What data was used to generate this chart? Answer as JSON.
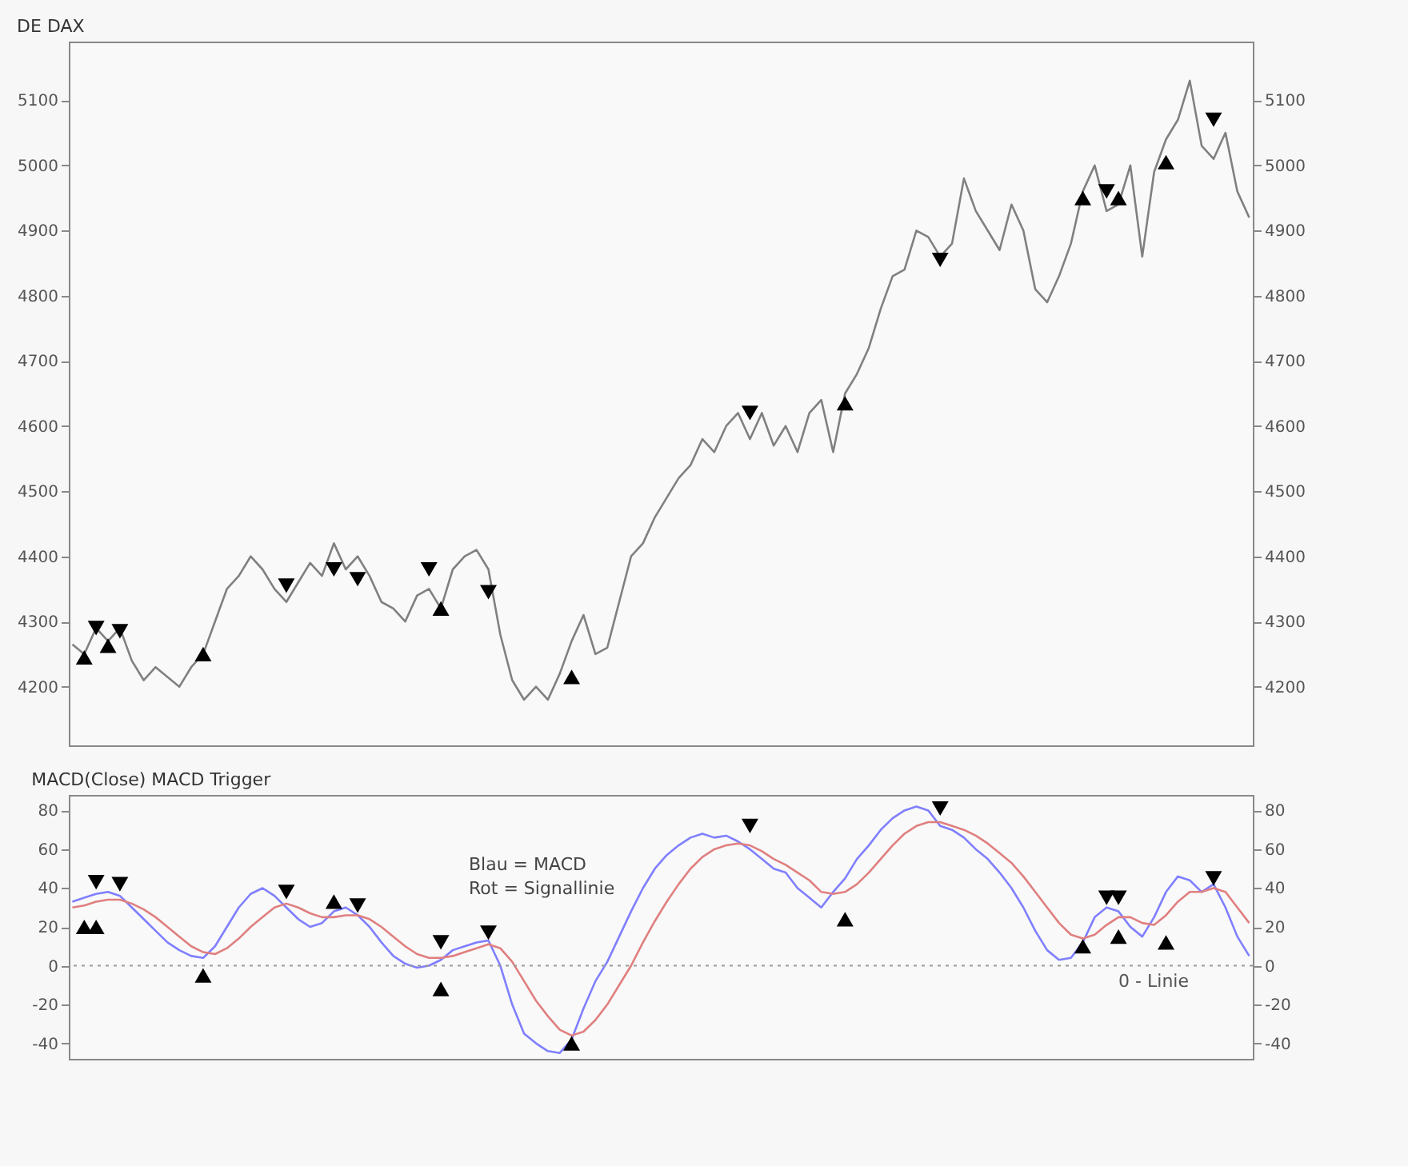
{
  "chart_data": [
    {
      "type": "line",
      "title": "DE DAX",
      "tick_labels": "y",
      "categories": [
        null,
        null,
        null,
        null,
        null,
        null,
        null,
        null,
        null,
        null,
        null,
        null,
        null,
        null,
        null,
        null,
        null,
        null,
        null,
        null,
        null,
        null,
        null,
        null,
        null,
        null,
        null,
        null,
        null,
        null,
        null,
        null,
        null,
        null,
        null,
        null,
        null,
        null,
        null,
        null,
        null,
        null,
        null,
        null,
        null,
        null,
        null,
        null,
        null,
        null,
        null,
        null,
        null,
        null,
        null,
        null,
        null,
        null,
        null,
        null,
        null,
        null,
        null,
        null,
        null,
        null,
        null,
        null,
        null,
        null,
        null,
        null,
        null,
        null,
        null,
        null,
        null,
        null,
        null,
        null,
        null,
        null,
        null,
        null,
        null,
        null,
        null,
        null,
        null,
        null,
        null,
        null,
        null,
        null,
        null,
        null,
        null,
        null,
        null,
        null
      ],
      "ylim": [
        4110,
        5190
      ],
      "yticks": [
        4200,
        4300,
        4400,
        4500,
        4600,
        4700,
        4800,
        4900,
        5000,
        5100
      ],
      "y2lim": [
        4110,
        5190
      ],
      "y2ticks": [
        4200,
        4300,
        4400,
        4500,
        4600,
        4700,
        4800,
        4900,
        5000,
        5100
      ],
      "series": [
        {
          "color": "#808080",
          "values": [
            4265,
            4250,
            4290,
            4270,
            4290,
            4240,
            4210,
            4230,
            4215,
            4200,
            4230,
            4250,
            4300,
            4350,
            4370,
            4400,
            4380,
            4350,
            4330,
            4360,
            4390,
            4370,
            4420,
            4380,
            4400,
            4370,
            4330,
            4320,
            4300,
            4340,
            4350,
            4320,
            4380,
            4400,
            4410,
            4380,
            4280,
            4210,
            4180,
            4200,
            4180,
            4220,
            4270,
            4310,
            4250,
            4260,
            4330,
            4400,
            4420,
            4460,
            4490,
            4520,
            4540,
            4580,
            4560,
            4600,
            4620,
            4580,
            4620,
            4570,
            4600,
            4560,
            4620,
            4640,
            4560,
            4650,
            4680,
            4720,
            4780,
            4830,
            4840,
            4900,
            4890,
            4860,
            4880,
            4980,
            4930,
            4900,
            4870,
            4940,
            4900,
            4810,
            4790,
            4830,
            4880,
            4960,
            5000,
            4930,
            4940,
            5000,
            4860,
            4990,
            5040,
            5070,
            5130,
            5030,
            5010,
            5050,
            4960,
            4920
          ]
        },
        {
          "type": "scatter",
          "marker": "triangle",
          "color": "#000000",
          "values": [
            null,
            4245,
            null,
            4263,
            null,
            null,
            null,
            null,
            null,
            null,
            null,
            4250,
            null,
            null,
            null,
            null,
            null,
            null,
            null,
            null,
            null,
            null,
            null,
            null,
            null,
            null,
            null,
            null,
            null,
            null,
            null,
            4320,
            null,
            null,
            null,
            null,
            null,
            null,
            null,
            null,
            null,
            null,
            4215,
            null,
            null,
            null,
            null,
            null,
            null,
            null,
            null,
            null,
            null,
            null,
            null,
            null,
            null,
            null,
            null,
            null,
            null,
            null,
            null,
            null,
            null,
            4635,
            null,
            null,
            null,
            null,
            null,
            null,
            null,
            null,
            null,
            null,
            null,
            null,
            null,
            null,
            null,
            null,
            null,
            null,
            null,
            4950,
            null,
            null,
            4950,
            null,
            null,
            null,
            5005,
            null,
            null,
            null,
            null,
            null,
            null,
            null
          ]
        },
        {
          "type": "scatter",
          "marker": "triangle-down",
          "color": "#000000",
          "values": [
            null,
            null,
            4290,
            null,
            4285,
            null,
            null,
            null,
            null,
            null,
            null,
            null,
            null,
            null,
            null,
            null,
            null,
            null,
            4355,
            null,
            null,
            null,
            4380,
            null,
            4365,
            null,
            null,
            null,
            null,
            null,
            4380,
            null,
            null,
            null,
            null,
            4345,
            null,
            null,
            null,
            null,
            null,
            null,
            null,
            null,
            null,
            null,
            null,
            null,
            null,
            null,
            null,
            null,
            null,
            null,
            null,
            null,
            null,
            4620,
            null,
            null,
            null,
            null,
            null,
            null,
            null,
            null,
            null,
            null,
            null,
            null,
            null,
            null,
            null,
            4855,
            null,
            null,
            null,
            null,
            null,
            null,
            null,
            null,
            null,
            null,
            null,
            null,
            null,
            4960,
            null,
            null,
            null,
            null,
            null,
            null,
            null,
            null,
            5070,
            null,
            null,
            null
          ]
        }
      ]
    },
    {
      "type": "line",
      "title": "MACD(Close) MACD Trigger",
      "tick_labels": "y",
      "categories": [
        null,
        null,
        null,
        null,
        null,
        null,
        null,
        null,
        null,
        null,
        null,
        null,
        null,
        null,
        null,
        null,
        null,
        null,
        null,
        null,
        null,
        null,
        null,
        null,
        null,
        null,
        null,
        null,
        null,
        null,
        null,
        null,
        null,
        null,
        null,
        null,
        null,
        null,
        null,
        null,
        null,
        null,
        null,
        null,
        null,
        null,
        null,
        null,
        null,
        null,
        null,
        null,
        null,
        null,
        null,
        null,
        null,
        null,
        null,
        null,
        null,
        null,
        null,
        null,
        null,
        null,
        null,
        null,
        null,
        null,
        null,
        null,
        null,
        null,
        null,
        null,
        null,
        null,
        null,
        null,
        null,
        null,
        null,
        null,
        null,
        null,
        null,
        null,
        null,
        null,
        null,
        null,
        null,
        null,
        null,
        null,
        null,
        null,
        null,
        null
      ],
      "ylim": [
        -48,
        88
      ],
      "yticks": [
        -40,
        -20,
        0,
        20,
        40,
        60,
        80
      ],
      "y2lim": [
        -48,
        88
      ],
      "y2ticks": [
        -40,
        -20,
        0,
        20,
        40,
        60,
        80
      ],
      "annotations": [
        "Blau = MACD",
        "Rot = Signallinie"
      ],
      "ref_lines": [
        {
          "axis": "y",
          "value": 0,
          "label": "0 - Linie",
          "color": "#999999",
          "line_style": "dotted"
        }
      ],
      "series": [
        {
          "color": "#7f7fff",
          "values": [
            33,
            35,
            37,
            38,
            36,
            30,
            24,
            18,
            12,
            8,
            5,
            4,
            10,
            20,
            30,
            37,
            40,
            36,
            30,
            24,
            20,
            22,
            28,
            30,
            26,
            20,
            12,
            5,
            1,
            -1,
            0,
            3,
            8,
            10,
            12,
            13,
            0,
            -20,
            -35,
            -40,
            -44,
            -45,
            -38,
            -22,
            -8,
            2,
            15,
            28,
            40,
            50,
            57,
            62,
            66,
            68,
            66,
            67,
            64,
            60,
            55,
            50,
            48,
            40,
            35,
            30,
            38,
            45,
            55,
            62,
            70,
            76,
            80,
            82,
            80,
            72,
            70,
            66,
            60,
            55,
            48,
            40,
            30,
            18,
            8,
            3,
            4,
            12,
            25,
            30,
            28,
            20,
            15,
            25,
            38,
            46,
            44,
            38,
            42,
            30,
            15,
            5
          ]
        },
        {
          "color": "#e07f7f",
          "values": [
            30,
            31,
            33,
            34,
            34,
            32,
            29,
            25,
            20,
            15,
            10,
            7,
            6,
            9,
            14,
            20,
            25,
            30,
            32,
            30,
            27,
            25,
            25,
            26,
            26,
            24,
            20,
            15,
            10,
            6,
            4,
            4,
            5,
            7,
            9,
            11,
            9,
            2,
            -8,
            -18,
            -26,
            -33,
            -36,
            -34,
            -28,
            -20,
            -10,
            0,
            12,
            23,
            33,
            42,
            50,
            56,
            60,
            62,
            63,
            62,
            59,
            55,
            52,
            48,
            44,
            38,
            37,
            38,
            42,
            48,
            55,
            62,
            68,
            72,
            74,
            74,
            72,
            70,
            67,
            63,
            58,
            53,
            46,
            38,
            30,
            22,
            16,
            14,
            16,
            21,
            25,
            25,
            22,
            21,
            26,
            33,
            38,
            38,
            40,
            38,
            30,
            22
          ]
        },
        {
          "type": "scatter",
          "marker": "triangle",
          "color": "#000000",
          "values": [
            null,
            20,
            20,
            null,
            null,
            null,
            null,
            null,
            null,
            null,
            null,
            -5,
            null,
            null,
            null,
            null,
            null,
            null,
            null,
            null,
            null,
            null,
            33,
            null,
            null,
            null,
            null,
            null,
            null,
            null,
            null,
            -12,
            null,
            null,
            null,
            null,
            null,
            null,
            null,
            null,
            null,
            null,
            -40,
            null,
            null,
            null,
            null,
            null,
            null,
            null,
            null,
            null,
            null,
            null,
            null,
            null,
            null,
            null,
            null,
            null,
            null,
            null,
            null,
            null,
            null,
            24,
            null,
            null,
            null,
            null,
            null,
            null,
            null,
            null,
            null,
            null,
            null,
            null,
            null,
            null,
            null,
            null,
            null,
            null,
            null,
            10,
            null,
            null,
            15,
            null,
            null,
            null,
            12,
            null,
            null,
            null,
            null,
            null,
            null,
            null
          ]
        },
        {
          "type": "scatter",
          "marker": "triangle-down",
          "color": "#000000",
          "values": [
            null,
            null,
            43,
            null,
            42,
            null,
            null,
            null,
            null,
            null,
            null,
            null,
            null,
            null,
            null,
            null,
            null,
            null,
            38,
            null,
            null,
            null,
            null,
            null,
            31,
            null,
            null,
            null,
            null,
            null,
            null,
            12,
            null,
            null,
            null,
            17,
            null,
            null,
            null,
            null,
            null,
            null,
            null,
            null,
            null,
            null,
            null,
            null,
            null,
            null,
            null,
            null,
            null,
            null,
            null,
            null,
            null,
            72,
            null,
            null,
            null,
            null,
            null,
            null,
            null,
            null,
            null,
            null,
            null,
            null,
            null,
            null,
            null,
            81,
            null,
            null,
            null,
            null,
            null,
            null,
            null,
            null,
            null,
            null,
            null,
            null,
            null,
            35,
            35,
            null,
            null,
            null,
            null,
            null,
            null,
            null,
            45,
            null,
            null,
            null
          ]
        }
      ]
    }
  ]
}
